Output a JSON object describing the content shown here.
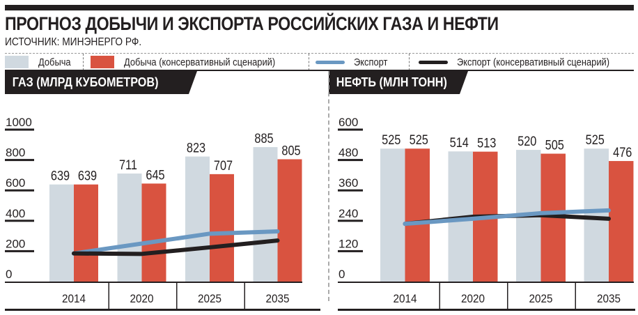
{
  "header": {
    "title": "ПРОГНОЗ ДОБЫЧИ И ЭКСПОРТА РОССИЙСКИХ ГАЗА И НЕФТИ",
    "source": "ИСТОЧНИК:  МИНЭНЕРГО РФ."
  },
  "legend": [
    {
      "label": "Добыча",
      "type": "box",
      "color": "#d0d9e0"
    },
    {
      "label": "Добыча (консервативный сценарий)",
      "type": "box",
      "color": "#d95340"
    },
    {
      "label": "Экспорт",
      "type": "line",
      "color": "#6a98c2"
    },
    {
      "label": "Экспорт (консервативный сценарий)",
      "type": "line",
      "color": "#231f20"
    }
  ],
  "colors": {
    "production": "#d0d9e0",
    "production_conservative": "#d95340",
    "export": "#6a98c2",
    "export_conservative": "#231f20",
    "ink": "#231f20"
  },
  "chart_data": [
    {
      "type": "bar",
      "title": "ГАЗ (МЛРД КУБОМЕТРОВ)",
      "xlabel": "",
      "ylabel": "",
      "categories": [
        "2014",
        "2020",
        "2025",
        "2035"
      ],
      "yticks": [
        "1000",
        "800",
        "600",
        "400",
        "200",
        "0"
      ],
      "ylim": [
        0,
        1000
      ],
      "series": [
        {
          "name": "Добыча",
          "kind": "bar",
          "values": [
            639,
            711,
            823,
            885
          ],
          "labels": [
            "639",
            "711",
            "823",
            "885"
          ]
        },
        {
          "name": "Добыча (консервативный сценарий)",
          "kind": "bar",
          "values": [
            639,
            645,
            707,
            805
          ],
          "labels": [
            "639",
            "645",
            "707",
            "805"
          ]
        },
        {
          "name": "Экспорт",
          "kind": "line",
          "values": [
            185,
            250,
            315,
            330
          ]
        },
        {
          "name": "Экспорт (консервативный сценарий)",
          "kind": "line",
          "values": [
            185,
            182,
            225,
            270
          ]
        }
      ]
    },
    {
      "type": "bar",
      "title": "НЕФТЬ (МЛН ТОНН)",
      "xlabel": "",
      "ylabel": "",
      "categories": [
        "2014",
        "2020",
        "2025",
        "2035"
      ],
      "yticks": [
        "600",
        "480",
        "360",
        "240",
        "120",
        "0"
      ],
      "ylim": [
        0,
        600
      ],
      "series": [
        {
          "name": "Добыча",
          "kind": "bar",
          "values": [
            525,
            514,
            520,
            525
          ],
          "labels": [
            "525",
            "514",
            "520",
            "525"
          ]
        },
        {
          "name": "Добыча (консервативный сценарий)",
          "kind": "bar",
          "values": [
            525,
            513,
            505,
            476
          ],
          "labels": [
            "525",
            "513",
            "505",
            "476"
          ]
        },
        {
          "name": "Экспорт",
          "kind": "line",
          "values": [
            228,
            248,
            270,
            281
          ]
        },
        {
          "name": "Экспорт (консервативный сценарий)",
          "kind": "line",
          "values": [
            228,
            256,
            262,
            248
          ]
        }
      ]
    }
  ]
}
